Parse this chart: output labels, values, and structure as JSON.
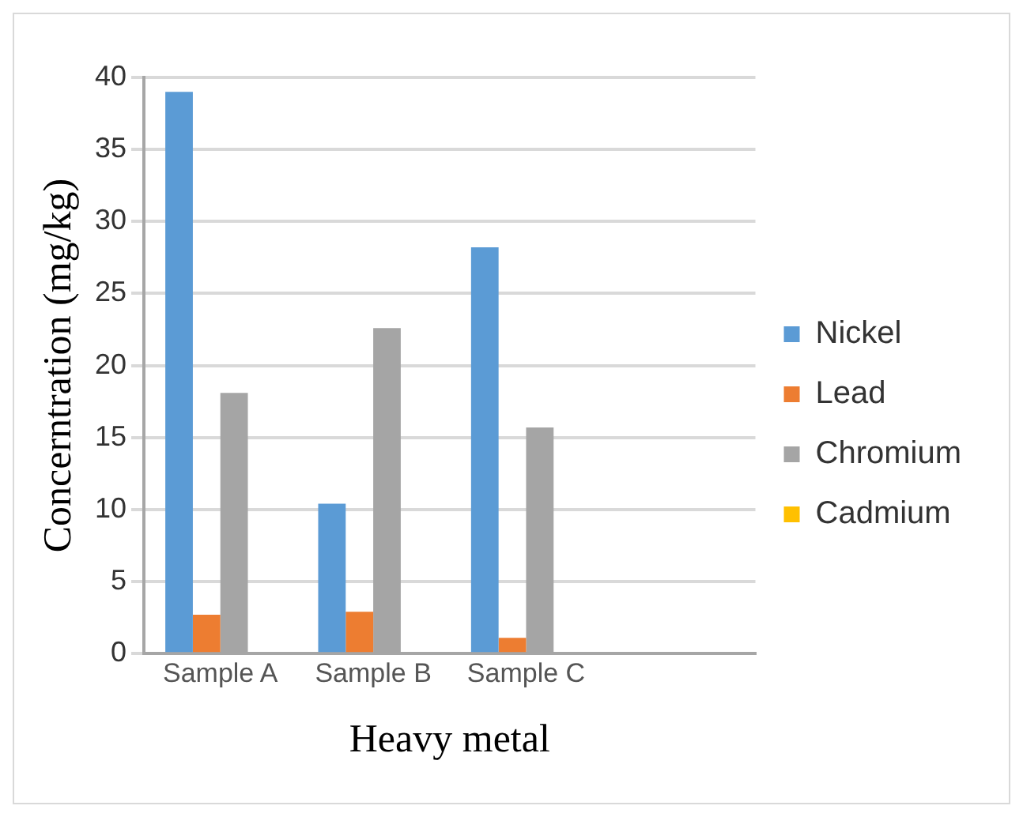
{
  "chart_data": {
    "type": "bar",
    "xlabel": "Heavy metal",
    "ylabel": "Concerntration (mg/kg)",
    "categories": [
      "Sample A",
      "Sample B",
      "Sample C",
      null
    ],
    "series": [
      {
        "name": "Nickel",
        "color": "#5b9bd5",
        "values": [
          39,
          10.4,
          28.2,
          null
        ]
      },
      {
        "name": "Lead",
        "color": "#ed7d31",
        "values": [
          2.7,
          2.9,
          1.1,
          null
        ]
      },
      {
        "name": "Chromium",
        "color": "#a5a5a5",
        "values": [
          18.1,
          22.6,
          15.7,
          null
        ]
      },
      {
        "name": "Cadmium",
        "color": "#ffc000",
        "values": [
          0,
          0,
          0,
          null
        ]
      }
    ],
    "ylim": [
      0,
      40
    ],
    "yticks": [
      0,
      5,
      10,
      15,
      20,
      25,
      30,
      35,
      40
    ],
    "grid": "y",
    "legend": "right"
  }
}
